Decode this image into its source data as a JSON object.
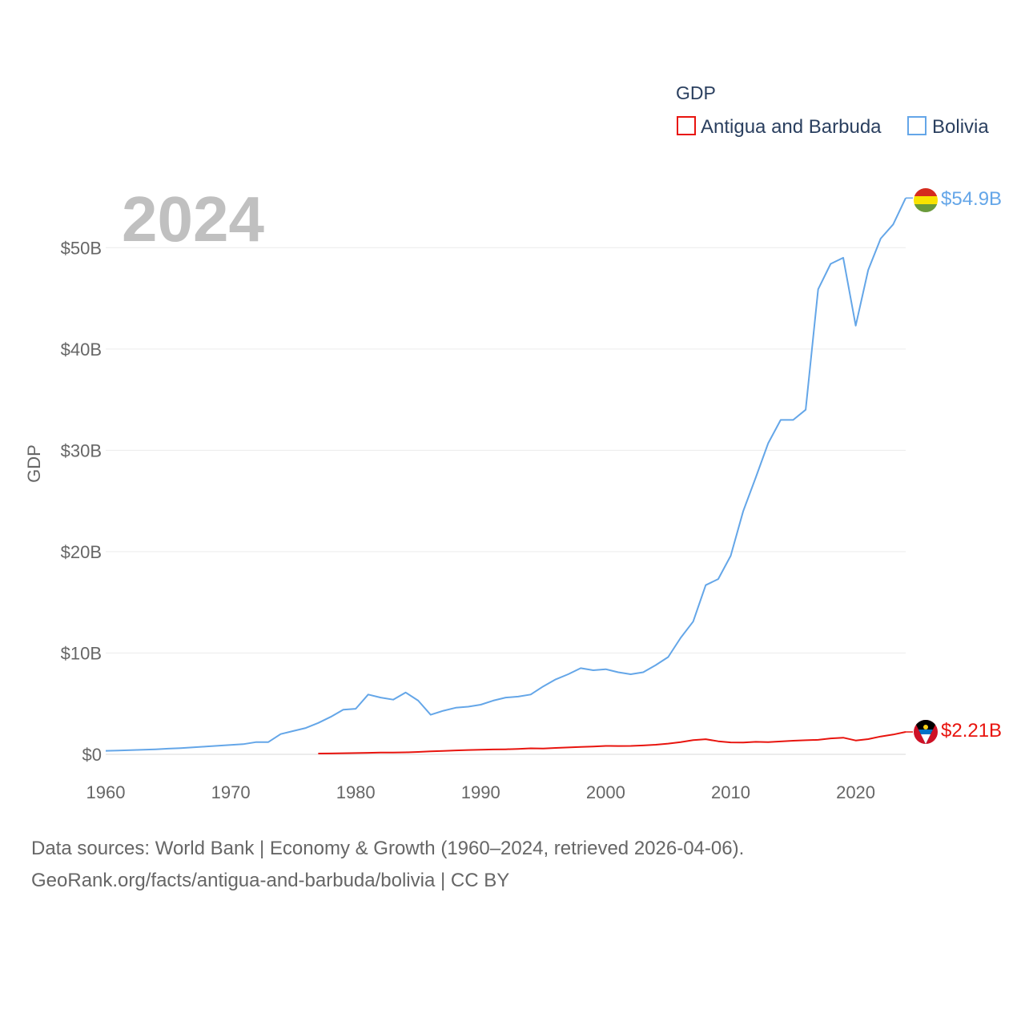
{
  "chart_data": {
    "type": "line",
    "title": "GDP",
    "year_label": "2024",
    "xlabel": "",
    "ylabel": "GDP",
    "xlim": [
      1960,
      2024
    ],
    "ylim": [
      0,
      55
    ],
    "x_ticks": [
      1960,
      1970,
      1980,
      1990,
      2000,
      2010,
      2020
    ],
    "y_ticks": [
      0,
      10,
      20,
      30,
      40,
      50
    ],
    "y_tick_labels": [
      "$0",
      "$10B",
      "$20B",
      "$30B",
      "$40B",
      "$50B"
    ],
    "grid": true,
    "legend": {
      "title": "GDP",
      "position": "top-right",
      "entries": [
        "Antigua and Barbuda",
        "Bolivia"
      ]
    },
    "series": [
      {
        "name": "Antigua and Barbuda",
        "color": "#e8140e",
        "end_label": "$2.21B",
        "x": [
          1977,
          1978,
          1979,
          1980,
          1981,
          1982,
          1983,
          1984,
          1985,
          1986,
          1987,
          1988,
          1989,
          1990,
          1991,
          1992,
          1993,
          1994,
          1995,
          1996,
          1997,
          1998,
          1999,
          2000,
          2001,
          2002,
          2003,
          2004,
          2005,
          2006,
          2007,
          2008,
          2009,
          2010,
          2011,
          2012,
          2013,
          2014,
          2015,
          2016,
          2017,
          2018,
          2019,
          2020,
          2021,
          2022,
          2023,
          2024
        ],
        "values": [
          0.08,
          0.09,
          0.11,
          0.13,
          0.15,
          0.17,
          0.18,
          0.2,
          0.24,
          0.29,
          0.33,
          0.39,
          0.43,
          0.46,
          0.48,
          0.5,
          0.54,
          0.59,
          0.58,
          0.63,
          0.68,
          0.73,
          0.77,
          0.83,
          0.82,
          0.83,
          0.88,
          0.95,
          1.06,
          1.21,
          1.4,
          1.49,
          1.29,
          1.18,
          1.16,
          1.23,
          1.2,
          1.27,
          1.34,
          1.39,
          1.43,
          1.57,
          1.64,
          1.37,
          1.5,
          1.76,
          1.95,
          2.21
        ]
      },
      {
        "name": "Bolivia",
        "color": "#64a6e8",
        "end_label": "$54.9B",
        "x": [
          1960,
          1961,
          1962,
          1963,
          1964,
          1965,
          1966,
          1967,
          1968,
          1969,
          1970,
          1971,
          1972,
          1973,
          1974,
          1975,
          1976,
          1977,
          1978,
          1979,
          1980,
          1981,
          1982,
          1983,
          1984,
          1985,
          1986,
          1987,
          1988,
          1989,
          1990,
          1991,
          1992,
          1993,
          1994,
          1995,
          1996,
          1997,
          1998,
          1999,
          2000,
          2001,
          2002,
          2003,
          2004,
          2005,
          2006,
          2007,
          2008,
          2009,
          2010,
          2011,
          2012,
          2013,
          2014,
          2015,
          2016,
          2017,
          2018,
          2019,
          2020,
          2021,
          2022,
          2023,
          2024
        ],
        "values": [
          0.35,
          0.38,
          0.42,
          0.45,
          0.5,
          0.56,
          0.62,
          0.69,
          0.77,
          0.85,
          0.93,
          1.0,
          1.2,
          1.2,
          2.0,
          2.3,
          2.6,
          3.1,
          3.7,
          4.4,
          4.5,
          5.9,
          5.6,
          5.4,
          6.1,
          5.3,
          3.9,
          4.3,
          4.6,
          4.7,
          4.9,
          5.3,
          5.6,
          5.7,
          5.9,
          6.7,
          7.4,
          7.9,
          8.5,
          8.3,
          8.4,
          8.1,
          7.9,
          8.1,
          8.8,
          9.6,
          11.5,
          13.1,
          16.7,
          17.3,
          19.6,
          24.0,
          27.3,
          30.7,
          33.0,
          33.0,
          34.0,
          45.9,
          48.4,
          49.0,
          42.3,
          47.8,
          50.9,
          52.3,
          54.9
        ]
      }
    ]
  },
  "footer": {
    "line1": "Data sources: World Bank | Economy & Growth (1960–2024, retrieved 2026-04-06).",
    "line2": "GeoRank.org/facts/antigua-and-barbuda/bolivia | CC BY"
  }
}
